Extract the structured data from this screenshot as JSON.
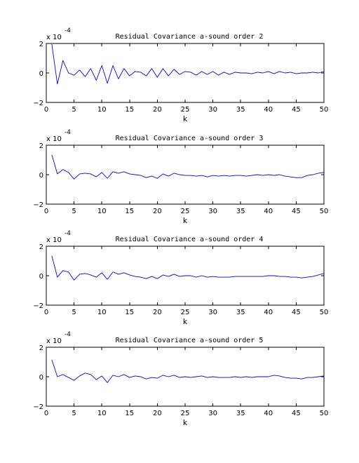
{
  "chart_data": [
    {
      "type": "line",
      "title": "Residual Covariance a-sound order 2",
      "xlabel": "k",
      "ylabel": "",
      "scale_label": "x 10",
      "scale_exponent": "-4",
      "xlim": [
        0,
        50
      ],
      "ylim": [
        -2,
        2
      ],
      "xticks": [
        0,
        5,
        10,
        15,
        20,
        25,
        30,
        35,
        40,
        45,
        50
      ],
      "yticks": [
        -2,
        0,
        2
      ],
      "color": "#0000ff",
      "x": [
        1,
        2,
        3,
        4,
        5,
        6,
        7,
        8,
        9,
        10,
        11,
        12,
        13,
        14,
        15,
        16,
        17,
        18,
        19,
        20,
        21,
        22,
        23,
        24,
        25,
        26,
        27,
        28,
        29,
        30,
        31,
        32,
        33,
        34,
        35,
        36,
        37,
        38,
        39,
        40,
        41,
        42,
        43,
        44,
        45,
        46,
        47,
        48,
        49,
        50
      ],
      "y": [
        1.95,
        -0.75,
        0.85,
        0.0,
        -0.15,
        0.2,
        -0.25,
        0.3,
        -0.5,
        0.5,
        -0.7,
        0.5,
        -0.4,
        0.3,
        -0.2,
        0.1,
        0.05,
        -0.2,
        0.3,
        -0.3,
        0.3,
        -0.2,
        0.25,
        -0.1,
        0.1,
        0.05,
        -0.15,
        0.1,
        -0.1,
        0.1,
        -0.15,
        0.05,
        -0.1,
        0.05,
        0.0,
        0.0,
        -0.05,
        0.05,
        0.0,
        0.1,
        -0.05,
        0.1,
        0.0,
        0.05,
        -0.05,
        0.0,
        0.0,
        0.05,
        0.0,
        0.1
      ]
    },
    {
      "type": "line",
      "title": "Residual Covariance a-sound order 3",
      "xlabel": "k",
      "ylabel": "",
      "scale_label": "x 10",
      "scale_exponent": "-4",
      "xlim": [
        0,
        50
      ],
      "ylim": [
        -2,
        2
      ],
      "xticks": [
        0,
        5,
        10,
        15,
        20,
        25,
        30,
        35,
        40,
        45,
        50
      ],
      "yticks": [
        -2,
        0,
        2
      ],
      "color": "#0000ff",
      "x": [
        1,
        2,
        3,
        4,
        5,
        6,
        7,
        8,
        9,
        10,
        11,
        12,
        13,
        14,
        15,
        16,
        17,
        18,
        19,
        20,
        21,
        22,
        23,
        24,
        25,
        26,
        27,
        28,
        29,
        30,
        31,
        32,
        33,
        34,
        35,
        36,
        37,
        38,
        39,
        40,
        41,
        42,
        43,
        44,
        45,
        46,
        47,
        48,
        49,
        50
      ],
      "y": [
        1.35,
        0.05,
        0.35,
        0.15,
        -0.3,
        0.05,
        0.1,
        0.05,
        -0.15,
        0.15,
        -0.25,
        0.2,
        0.1,
        0.2,
        0.05,
        0.0,
        -0.05,
        -0.2,
        -0.1,
        -0.25,
        0.05,
        -0.1,
        0.1,
        0.0,
        -0.05,
        -0.05,
        -0.1,
        -0.05,
        -0.15,
        -0.05,
        -0.1,
        -0.05,
        -0.1,
        -0.05,
        -0.05,
        -0.1,
        -0.05,
        0.0,
        -0.05,
        0.0,
        -0.05,
        0.0,
        -0.1,
        -0.15,
        -0.2,
        -0.2,
        -0.05,
        0.0,
        0.1,
        0.15
      ]
    },
    {
      "type": "line",
      "title": "Residual Covariance a-sound order 4",
      "xlabel": "k",
      "ylabel": "",
      "scale_label": "x 10",
      "scale_exponent": "-4",
      "xlim": [
        0,
        50
      ],
      "ylim": [
        -2,
        2
      ],
      "xticks": [
        0,
        5,
        10,
        15,
        20,
        25,
        30,
        35,
        40,
        45,
        50
      ],
      "yticks": [
        -2,
        0,
        2
      ],
      "color": "#0000ff",
      "x": [
        1,
        2,
        3,
        4,
        5,
        6,
        7,
        8,
        9,
        10,
        11,
        12,
        13,
        14,
        15,
        16,
        17,
        18,
        19,
        20,
        21,
        22,
        23,
        24,
        25,
        26,
        27,
        28,
        29,
        30,
        31,
        32,
        33,
        34,
        35,
        36,
        37,
        38,
        39,
        40,
        41,
        42,
        43,
        44,
        45,
        46,
        47,
        48,
        49,
        50
      ],
      "y": [
        1.35,
        -0.1,
        0.35,
        0.25,
        -0.3,
        0.1,
        0.15,
        0.05,
        -0.1,
        0.2,
        -0.25,
        0.25,
        0.1,
        0.2,
        0.05,
        -0.05,
        -0.1,
        -0.2,
        -0.05,
        -0.2,
        0.05,
        -0.05,
        0.1,
        -0.05,
        0.0,
        0.0,
        -0.1,
        0.0,
        -0.1,
        -0.05,
        -0.1,
        -0.1,
        -0.1,
        -0.05,
        -0.05,
        -0.05,
        -0.05,
        -0.05,
        -0.05,
        0.0,
        0.0,
        -0.05,
        -0.05,
        -0.1,
        -0.1,
        -0.15,
        -0.1,
        -0.05,
        0.05,
        0.15
      ]
    },
    {
      "type": "line",
      "title": "Residual Covariance a-sound order 5",
      "xlabel": "k",
      "ylabel": "",
      "scale_label": "x 10",
      "scale_exponent": "-4",
      "xlim": [
        0,
        50
      ],
      "ylim": [
        -2,
        2
      ],
      "xticks": [
        0,
        5,
        10,
        15,
        20,
        25,
        30,
        35,
        40,
        45,
        50
      ],
      "yticks": [
        -2,
        0,
        2
      ],
      "color": "#0000ff",
      "x": [
        1,
        2,
        3,
        4,
        5,
        6,
        7,
        8,
        9,
        10,
        11,
        12,
        13,
        14,
        15,
        16,
        17,
        18,
        19,
        20,
        21,
        22,
        23,
        24,
        25,
        26,
        27,
        28,
        29,
        30,
        31,
        32,
        33,
        34,
        35,
        36,
        37,
        38,
        39,
        40,
        41,
        42,
        43,
        44,
        45,
        46,
        47,
        48,
        49,
        50
      ],
      "y": [
        1.15,
        0.0,
        0.15,
        -0.05,
        -0.25,
        0.05,
        0.25,
        0.15,
        -0.2,
        0.05,
        -0.4,
        0.1,
        0.0,
        0.15,
        -0.05,
        0.05,
        0.0,
        -0.15,
        -0.05,
        -0.1,
        0.1,
        0.0,
        0.1,
        -0.05,
        0.0,
        -0.05,
        0.0,
        0.05,
        -0.05,
        0.0,
        -0.05,
        -0.05,
        -0.05,
        0.0,
        -0.05,
        0.0,
        -0.05,
        0.0,
        0.0,
        0.0,
        0.1,
        0.05,
        -0.05,
        -0.1,
        -0.1,
        -0.15,
        -0.05,
        -0.05,
        0.0,
        0.05
      ]
    }
  ]
}
